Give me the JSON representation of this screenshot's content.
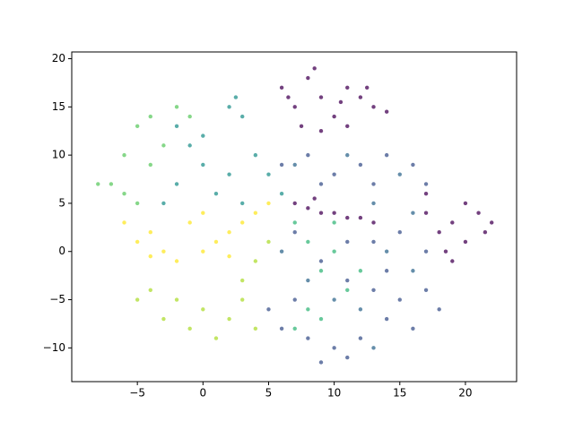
{
  "chart_data": {
    "type": "scatter",
    "xlim": [
      -10,
      23.9
    ],
    "ylim": [
      -13.5,
      20.7
    ],
    "xticks": [
      {
        "value": -5,
        "label": "−5"
      },
      0,
      5,
      10,
      15,
      20
    ],
    "yticks": [
      {
        "value": -10,
        "label": "−10"
      },
      {
        "value": -5,
        "label": "−5"
      },
      0,
      5,
      10,
      15,
      20
    ],
    "series": [
      {
        "color": "#440154",
        "x": [
          6,
          7,
          8,
          9,
          10,
          11,
          12,
          13,
          14,
          7.5,
          9,
          11,
          12.5,
          6.5,
          8.5,
          10.5,
          7,
          8,
          9,
          10,
          11,
          12,
          13,
          8.5,
          17,
          18,
          19,
          20,
          21,
          21.5,
          20,
          18.5,
          19,
          17,
          22
        ],
        "y": [
          17,
          15,
          18,
          16,
          14,
          17,
          16,
          15,
          14.5,
          13,
          12.5,
          13,
          17,
          16,
          19,
          15.5,
          5,
          4.5,
          4,
          4,
          3.5,
          3.5,
          3,
          5.5,
          4,
          2,
          3,
          5,
          4,
          2,
          1,
          0,
          -1,
          6,
          3
        ]
      },
      {
        "color": "#3b528b",
        "x": [
          6,
          8,
          10,
          12,
          14,
          16,
          17,
          13,
          9,
          7,
          9,
          11,
          13,
          15,
          17,
          18,
          16,
          14,
          12,
          10,
          9,
          11,
          8,
          7,
          6,
          5,
          13,
          15,
          17,
          14,
          11
        ],
        "y": [
          9,
          10,
          8,
          9,
          10,
          9,
          7,
          7,
          7,
          2,
          -1,
          -3,
          -4,
          -5,
          -4,
          -6,
          -8,
          -7,
          -9,
          -10,
          -11.5,
          -11,
          -9,
          -5,
          -8,
          -6,
          1,
          2,
          0,
          -2,
          1
        ]
      },
      {
        "color": "#31688e",
        "x": [
          7,
          11,
          15,
          13,
          16,
          10,
          12,
          14,
          8,
          6,
          16,
          13
        ],
        "y": [
          9,
          10,
          8,
          5,
          4,
          -5,
          -6,
          0,
          -3,
          0,
          -2,
          -10
        ]
      },
      {
        "color": "#21918c",
        "x": [
          -2,
          0,
          2,
          3,
          4,
          5,
          6,
          2,
          0,
          -2,
          -3,
          1,
          3,
          -1,
          2.5
        ],
        "y": [
          13,
          12,
          15,
          14,
          10,
          8,
          6,
          8,
          9,
          7,
          5,
          6,
          5,
          11,
          16
        ]
      },
      {
        "color": "#35b779",
        "x": [
          7,
          8,
          9,
          10,
          11,
          8,
          7,
          12,
          10,
          9
        ],
        "y": [
          3,
          1,
          -2,
          0,
          -4,
          -6,
          -8,
          -2,
          3,
          -7
        ]
      },
      {
        "color": "#5ec962",
        "x": [
          -7,
          -6,
          -5,
          -4,
          -2,
          -1,
          -6,
          -4,
          -3,
          -5,
          -8
        ],
        "y": [
          7,
          10,
          13,
          14,
          15,
          14,
          6,
          9,
          11,
          5,
          7
        ]
      },
      {
        "color": "#addc30",
        "x": [
          -4,
          -2,
          0,
          2,
          4,
          -3,
          -1,
          1,
          3,
          4,
          5,
          3,
          -5
        ],
        "y": [
          -4,
          -5,
          -6,
          -7,
          -8,
          -7,
          -8,
          -9,
          -3,
          -1,
          1,
          -5,
          -5
        ]
      },
      {
        "color": "#fde725",
        "x": [
          -6,
          -5,
          -4,
          -3,
          -2,
          0,
          1,
          2,
          3,
          4,
          5,
          -1,
          0,
          2,
          -4
        ],
        "y": [
          3,
          1,
          2,
          0,
          -1,
          0,
          1,
          2,
          3,
          4,
          5,
          3,
          4,
          -0.5,
          -0.5
        ]
      }
    ]
  }
}
